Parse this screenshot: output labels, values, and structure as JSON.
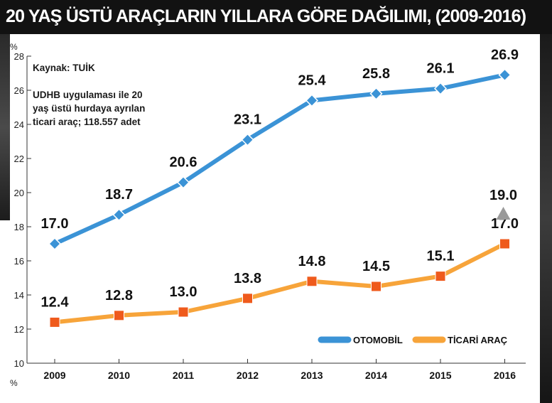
{
  "title": "20 YAŞ ÜSTÜ ARAÇLARIN YILLARA GÖRE DAĞILIMI, (2009-2016)",
  "source_text": "Kaynak: TUİK",
  "note_text": "UDHB uygulaması ile 20 yaş üstü hurdaya ayrılan ticari araç; 118.557 adet",
  "colors": {
    "otomobil": "#3b93d6",
    "ticari": "#f7a43a",
    "title_bg": "#121212"
  },
  "chart_data": {
    "type": "line",
    "x": [
      "2009",
      "2010",
      "2011",
      "2012",
      "2013",
      "2014",
      "2015",
      "2016"
    ],
    "y_unit_top": "%",
    "y_unit_bottom": "%",
    "ylim": [
      10,
      28
    ],
    "yticks": [
      10,
      12,
      14,
      16,
      18,
      20,
      22,
      24,
      26,
      28
    ],
    "grid": false,
    "legend_position": "bottom-right",
    "series": [
      {
        "name": "OTOMOBİL",
        "color": "#3b93d6",
        "marker": "diamond",
        "values": [
          17.0,
          18.7,
          20.6,
          23.1,
          25.4,
          25.8,
          26.1,
          26.9
        ],
        "labels": [
          "17.0",
          "18.7",
          "20.6",
          "23.1",
          "25.4",
          "25.8",
          "26.1",
          "26.9"
        ]
      },
      {
        "name": "TİCARİ ARAÇ",
        "color": "#f7a43a",
        "marker_color": "#ef5a1c",
        "marker": "square",
        "values": [
          12.4,
          12.8,
          13.0,
          13.8,
          14.8,
          14.5,
          15.1,
          17.0
        ],
        "labels": [
          "12.4",
          "12.8",
          "13.0",
          "13.8",
          "14.8",
          "14.5",
          "15.1",
          "17.0"
        ]
      }
    ],
    "annotations": [
      {
        "x": "2016",
        "y": 19.0,
        "label": "19.0",
        "marker": "triangle-up",
        "color": "#9a9a9a"
      }
    ]
  }
}
